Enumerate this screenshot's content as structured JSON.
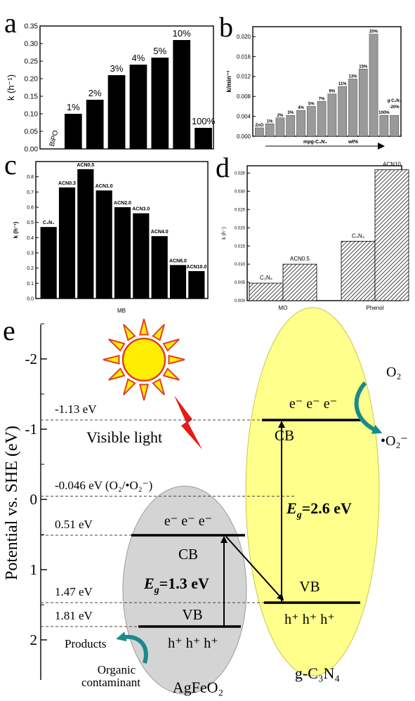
{
  "panel_labels": [
    "a",
    "b",
    "c",
    "d",
    "e"
  ],
  "colors": {
    "black_bar": "#000000",
    "gray_bar": "#9a9a9a",
    "gray_bar_edge": "#555555",
    "hatch": "#444444",
    "sun_fill": "#ffee00",
    "sun_stroke": "#e0402a",
    "bolt": "#e41b17",
    "agfeo2_fill": "#d4d4d4",
    "gcn_fill": "#ffff8c",
    "teal": "#1b8a8a",
    "dash": "#444444"
  },
  "chart_data": [
    {
      "type": "bar",
      "panel": "a",
      "categories": [
        "BiPO",
        "1%",
        "2%",
        "3%",
        "4%",
        "5%",
        "10%",
        "100%"
      ],
      "values": [
        0.0,
        0.1,
        0.14,
        0.21,
        0.24,
        0.26,
        0.31,
        0.06
      ],
      "bar_labels": [
        "BiPO",
        "1%",
        "2%",
        "3%",
        "4%",
        "5%",
        "10%",
        "100%"
      ],
      "ylabel": "k (h⁻¹)",
      "ylim": [
        0,
        0.35
      ],
      "yticks": [
        "0.00",
        "0.05",
        "0.10",
        "0.15",
        "0.20",
        "0.25",
        "0.30",
        "0.35"
      ]
    },
    {
      "type": "bar",
      "panel": "b",
      "categories": [
        "ZnO",
        "1%",
        "2%",
        "3%",
        "4%",
        "5%",
        "7%",
        "9%",
        "11%",
        "13%",
        "15%",
        "20%",
        "100%",
        "g-C3N4-20%"
      ],
      "values": [
        0.0017,
        0.0025,
        0.0037,
        0.0042,
        0.0052,
        0.006,
        0.007,
        0.0085,
        0.01,
        0.0115,
        0.0135,
        0.0205,
        0.0042,
        0.0042
      ],
      "bar_labels": [
        "ZnO",
        "1%",
        "2%",
        "3%",
        "4%",
        "5%",
        "7%",
        "9%",
        "11%",
        "13%",
        "15%",
        "20%",
        "100%",
        ""
      ],
      "last_label_lines": [
        "g-C₃N₄",
        "-20%"
      ],
      "ylabel": "k/min⁻¹",
      "xlabel_left": "mpg-C₃N₄",
      "xlabel_right": "wt%",
      "ylim": [
        0,
        0.022
      ],
      "yticks": [
        "0.000",
        "0.004",
        "0.008",
        "0.012",
        "0.016",
        "0.020"
      ]
    },
    {
      "type": "bar",
      "panel": "c",
      "categories": [
        "C3N4",
        "ACN0.3",
        "ACN0.5",
        "ACN1.0",
        "ACN2.0",
        "ACN3.0",
        "ACN4.0",
        "ACN6.0",
        "ACN10.0"
      ],
      "values": [
        0.47,
        0.73,
        0.85,
        0.71,
        0.6,
        0.56,
        0.41,
        0.22,
        0.18
      ],
      "bar_labels": [
        "C₃N₄",
        "ACN0.3",
        "ACN0.5",
        "ACN1.0",
        "ACN2.0",
        "ACN3.0",
        "ACN4.0",
        "ACN6.0",
        "ACN10.0"
      ],
      "ylabel": "k (h⁻¹)",
      "xlabel": "MB",
      "ylim": [
        0,
        0.9
      ],
      "yticks": [
        "0.0",
        "0.1",
        "0.2",
        "0.3",
        "0.4",
        "0.5",
        "0.6",
        "0.7",
        "0.8"
      ]
    },
    {
      "type": "bar",
      "panel": "d",
      "categories": [
        "MO",
        "Phenol"
      ],
      "series": [
        {
          "values": [
            0.0048,
            0.0163
          ],
          "labels": [
            "C₃N₄",
            "C₃N₄"
          ]
        },
        {
          "values": [
            0.01,
            0.0359
          ],
          "labels": [
            "ACN0.5",
            "ACN10"
          ]
        }
      ],
      "ylabel": "k (h⁻)",
      "ylim": [
        0,
        0.037
      ],
      "yticks": [
        "0.000",
        "0.005",
        "0.010",
        "0.015",
        "0.020",
        "0.025",
        "0.030",
        "0.035"
      ]
    },
    {
      "type": "diagram",
      "panel": "e",
      "ylabel": "Potential vs. SHE (eV)",
      "ylim": [
        -2.5,
        2.3
      ],
      "yticks": [
        "-2",
        "-1",
        "0",
        "1",
        "2"
      ],
      "levels": [
        {
          "value": -1.13,
          "label": "-1.13 eV"
        },
        {
          "value": -0.046,
          "label": "-0.046 eV (O₂/•O₂⁻)"
        },
        {
          "value": 0.51,
          "label": "0.51 eV"
        },
        {
          "value": 1.47,
          "label": "1.47 eV"
        },
        {
          "value": 1.81,
          "label": "1.81 eV"
        }
      ],
      "agfeo2": {
        "name": "AgFeO₂",
        "cb": 0.51,
        "vb": 1.81,
        "eg": "=1.3 eV",
        "cb_label": "CB",
        "vb_label": "VB",
        "electrons": "e⁻  e⁻  e⁻",
        "holes": "h⁺  h⁺  h⁺"
      },
      "gc3n4": {
        "name": "g-C₃N₄",
        "cb": -1.13,
        "vb": 1.47,
        "eg": "=2.6 eV",
        "cb_label": "CB",
        "vb_label": "VB",
        "electrons": "e⁻  e⁻  e⁻",
        "holes": "h⁺  h⁺  h⁺"
      },
      "eg_symbol": "E",
      "eg_sub": "g",
      "visible_light": "Visible light",
      "o2": "O₂",
      "superoxide": "•O₂⁻",
      "products": "Products",
      "contaminant_lines": [
        "Organic",
        "contaminant"
      ]
    }
  ]
}
